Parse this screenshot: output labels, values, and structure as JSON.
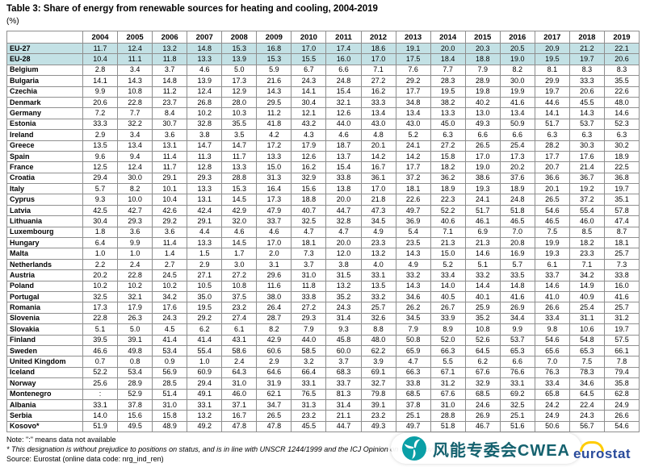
{
  "page": {
    "title": "Table 3: Share of energy from renewable sources for heating and cooling, 2004-2019",
    "unit_label": "(%)"
  },
  "table": {
    "years": [
      "2004",
      "2005",
      "2006",
      "2007",
      "2008",
      "2009",
      "2010",
      "2011",
      "2012",
      "2013",
      "2014",
      "2015",
      "2016",
      "2017",
      "2018",
      "2019"
    ],
    "rows": [
      {
        "name": "EU-27",
        "highlight": true,
        "values": [
          "11.7",
          "12.4",
          "13.2",
          "14.8",
          "15.3",
          "16.8",
          "17.0",
          "17.4",
          "18.6",
          "19.1",
          "20.0",
          "20.3",
          "20.5",
          "20.9",
          "21.2",
          "22.1"
        ]
      },
      {
        "name": "EU-28",
        "highlight": true,
        "values": [
          "10.4",
          "11.1",
          "11.8",
          "13.3",
          "13.9",
          "15.3",
          "15.5",
          "16.0",
          "17.0",
          "17.5",
          "18.4",
          "18.8",
          "19.0",
          "19.5",
          "19.7",
          "20.6"
        ]
      },
      {
        "name": "Belgium",
        "highlight": false,
        "values": [
          "2.8",
          "3.4",
          "3.7",
          "4.6",
          "5.0",
          "5.9",
          "6.7",
          "6.6",
          "7.1",
          "7.6",
          "7.7",
          "7.9",
          "8.2",
          "8.1",
          "8.3",
          "8.3"
        ]
      },
      {
        "name": "Bulgaria",
        "highlight": false,
        "values": [
          "14.1",
          "14.3",
          "14.8",
          "13.9",
          "17.3",
          "21.6",
          "24.3",
          "24.8",
          "27.2",
          "29.2",
          "28.3",
          "28.9",
          "30.0",
          "29.9",
          "33.3",
          "35.5"
        ]
      },
      {
        "name": "Czechia",
        "highlight": false,
        "values": [
          "9.9",
          "10.8",
          "11.2",
          "12.4",
          "12.9",
          "14.3",
          "14.1",
          "15.4",
          "16.2",
          "17.7",
          "19.5",
          "19.8",
          "19.9",
          "19.7",
          "20.6",
          "22.6"
        ]
      },
      {
        "name": "Denmark",
        "highlight": false,
        "values": [
          "20.6",
          "22.8",
          "23.7",
          "26.8",
          "28.0",
          "29.5",
          "30.4",
          "32.1",
          "33.3",
          "34.8",
          "38.2",
          "40.2",
          "41.6",
          "44.6",
          "45.5",
          "48.0"
        ]
      },
      {
        "name": "Germany",
        "highlight": false,
        "values": [
          "7.2",
          "7.7",
          "8.4",
          "10.2",
          "10.3",
          "11.2",
          "12.1",
          "12.6",
          "13.4",
          "13.4",
          "13.3",
          "13.0",
          "13.4",
          "14.1",
          "14.3",
          "14.6"
        ]
      },
      {
        "name": "Estonia",
        "highlight": false,
        "values": [
          "33.3",
          "32.2",
          "30.7",
          "32.8",
          "35.5",
          "41.8",
          "43.2",
          "44.0",
          "43.0",
          "43.0",
          "45.0",
          "49.3",
          "50.9",
          "51.7",
          "53.7",
          "52.3"
        ]
      },
      {
        "name": "Ireland",
        "highlight": false,
        "values": [
          "2.9",
          "3.4",
          "3.6",
          "3.8",
          "3.5",
          "4.2",
          "4.3",
          "4.6",
          "4.8",
          "5.2",
          "6.3",
          "6.6",
          "6.6",
          "6.3",
          "6.3",
          "6.3"
        ]
      },
      {
        "name": "Greece",
        "highlight": false,
        "values": [
          "13.5",
          "13.4",
          "13.1",
          "14.7",
          "14.7",
          "17.2",
          "17.9",
          "18.7",
          "20.1",
          "24.1",
          "27.2",
          "26.5",
          "25.4",
          "28.2",
          "30.3",
          "30.2"
        ]
      },
      {
        "name": "Spain",
        "highlight": false,
        "values": [
          "9.6",
          "9.4",
          "11.4",
          "11.3",
          "11.7",
          "13.3",
          "12.6",
          "13.7",
          "14.2",
          "14.2",
          "15.8",
          "17.0",
          "17.3",
          "17.7",
          "17.6",
          "18.9"
        ]
      },
      {
        "name": "France",
        "highlight": false,
        "values": [
          "12.5",
          "12.4",
          "11.7",
          "12.8",
          "13.3",
          "15.0",
          "16.2",
          "15.4",
          "16.7",
          "17.7",
          "18.2",
          "19.0",
          "20.2",
          "20.7",
          "21.4",
          "22.5"
        ]
      },
      {
        "name": "Croatia",
        "highlight": false,
        "values": [
          "29.4",
          "30.0",
          "29.1",
          "29.3",
          "28.8",
          "31.3",
          "32.9",
          "33.8",
          "36.1",
          "37.2",
          "36.2",
          "38.6",
          "37.6",
          "36.6",
          "36.7",
          "36.8"
        ]
      },
      {
        "name": "Italy",
        "highlight": false,
        "values": [
          "5.7",
          "8.2",
          "10.1",
          "13.3",
          "15.3",
          "16.4",
          "15.6",
          "13.8",
          "17.0",
          "18.1",
          "18.9",
          "19.3",
          "18.9",
          "20.1",
          "19.2",
          "19.7"
        ]
      },
      {
        "name": "Cyprus",
        "highlight": false,
        "values": [
          "9.3",
          "10.0",
          "10.4",
          "13.1",
          "14.5",
          "17.3",
          "18.8",
          "20.0",
          "21.8",
          "22.6",
          "22.3",
          "24.1",
          "24.8",
          "26.5",
          "37.2",
          "35.1"
        ]
      },
      {
        "name": "Latvia",
        "highlight": false,
        "values": [
          "42.5",
          "42.7",
          "42.6",
          "42.4",
          "42.9",
          "47.9",
          "40.7",
          "44.7",
          "47.3",
          "49.7",
          "52.2",
          "51.7",
          "51.8",
          "54.6",
          "55.4",
          "57.8"
        ]
      },
      {
        "name": "Lithuania",
        "highlight": false,
        "values": [
          "30.4",
          "29.3",
          "29.2",
          "29.1",
          "32.0",
          "33.7",
          "32.5",
          "32.8",
          "34.5",
          "36.9",
          "40.6",
          "46.1",
          "46.5",
          "46.5",
          "46.0",
          "47.4"
        ]
      },
      {
        "name": "Luxembourg",
        "highlight": false,
        "values": [
          "1.8",
          "3.6",
          "3.6",
          "4.4",
          "4.6",
          "4.6",
          "4.7",
          "4.7",
          "4.9",
          "5.4",
          "7.1",
          "6.9",
          "7.0",
          "7.5",
          "8.5",
          "8.7"
        ]
      },
      {
        "name": "Hungary",
        "highlight": false,
        "values": [
          "6.4",
          "9.9",
          "11.4",
          "13.3",
          "14.5",
          "17.0",
          "18.1",
          "20.0",
          "23.3",
          "23.5",
          "21.3",
          "21.3",
          "20.8",
          "19.9",
          "18.2",
          "18.1"
        ]
      },
      {
        "name": "Malta",
        "highlight": false,
        "values": [
          "1.0",
          "1.0",
          "1.4",
          "1.5",
          "1.7",
          "2.0",
          "7.3",
          "12.0",
          "13.2",
          "14.3",
          "15.0",
          "14.6",
          "16.9",
          "19.3",
          "23.3",
          "25.7"
        ]
      },
      {
        "name": "Netherlands",
        "highlight": false,
        "values": [
          "2.2",
          "2.4",
          "2.7",
          "2.9",
          "3.0",
          "3.1",
          "3.7",
          "3.8",
          "4.0",
          "4.9",
          "5.2",
          "5.1",
          "5.7",
          "6.1",
          "7.1",
          "7.3"
        ]
      },
      {
        "name": "Austria",
        "highlight": false,
        "values": [
          "20.2",
          "22.8",
          "24.5",
          "27.1",
          "27.2",
          "29.6",
          "31.0",
          "31.5",
          "33.1",
          "33.2",
          "33.4",
          "33.2",
          "33.5",
          "33.7",
          "34.2",
          "33.8"
        ]
      },
      {
        "name": "Poland",
        "highlight": false,
        "values": [
          "10.2",
          "10.2",
          "10.2",
          "10.5",
          "10.8",
          "11.6",
          "11.8",
          "13.2",
          "13.5",
          "14.3",
          "14.0",
          "14.4",
          "14.8",
          "14.6",
          "14.9",
          "16.0"
        ]
      },
      {
        "name": "Portugal",
        "highlight": false,
        "values": [
          "32.5",
          "32.1",
          "34.2",
          "35.0",
          "37.5",
          "38.0",
          "33.8",
          "35.2",
          "33.2",
          "34.6",
          "40.5",
          "40.1",
          "41.6",
          "41.0",
          "40.9",
          "41.6"
        ]
      },
      {
        "name": "Romania",
        "highlight": false,
        "values": [
          "17.3",
          "17.9",
          "17.6",
          "19.5",
          "23.2",
          "26.4",
          "27.2",
          "24.3",
          "25.7",
          "26.2",
          "26.7",
          "25.9",
          "26.9",
          "26.6",
          "25.4",
          "25.7"
        ]
      },
      {
        "name": "Slovenia",
        "highlight": false,
        "values": [
          "22.8",
          "26.3",
          "24.3",
          "29.2",
          "27.4",
          "28.7",
          "29.3",
          "31.4",
          "32.6",
          "34.5",
          "33.9",
          "35.2",
          "34.4",
          "33.4",
          "31.1",
          "31.2"
        ]
      },
      {
        "name": "Slovakia",
        "highlight": false,
        "values": [
          "5.1",
          "5.0",
          "4.5",
          "6.2",
          "6.1",
          "8.2",
          "7.9",
          "9.3",
          "8.8",
          "7.9",
          "8.9",
          "10.8",
          "9.9",
          "9.8",
          "10.6",
          "19.7"
        ]
      },
      {
        "name": "Finland",
        "highlight": false,
        "values": [
          "39.5",
          "39.1",
          "41.4",
          "41.4",
          "43.1",
          "42.9",
          "44.0",
          "45.8",
          "48.0",
          "50.8",
          "52.0",
          "52.6",
          "53.7",
          "54.6",
          "54.8",
          "57.5"
        ]
      },
      {
        "name": "Sweden",
        "highlight": false,
        "values": [
          "46.6",
          "49.8",
          "53.4",
          "55.4",
          "58.6",
          "60.6",
          "58.5",
          "60.0",
          "62.2",
          "65.9",
          "66.3",
          "64.5",
          "65.3",
          "65.6",
          "65.3",
          "66.1"
        ]
      },
      {
        "name": "United Kingdom",
        "highlight": false,
        "values": [
          "0.7",
          "0.8",
          "0.9",
          "1.0",
          "2.4",
          "2.9",
          "3.2",
          "3.7",
          "3.9",
          "4.7",
          "5.5",
          "6.2",
          "6.6",
          "7.0",
          "7.5",
          "7.8"
        ]
      },
      {
        "name": "Iceland",
        "highlight": false,
        "values": [
          "52.2",
          "53.4",
          "56.9",
          "60.9",
          "64.3",
          "64.6",
          "66.4",
          "68.3",
          "69.1",
          "66.3",
          "67.1",
          "67.6",
          "76.6",
          "76.3",
          "78.3",
          "79.4"
        ]
      },
      {
        "name": "Norway",
        "highlight": false,
        "values": [
          "25.6",
          "28.9",
          "28.5",
          "29.4",
          "31.0",
          "31.9",
          "33.1",
          "33.7",
          "32.7",
          "33.8",
          "31.2",
          "32.9",
          "33.1",
          "33.4",
          "34.6",
          "35.8"
        ]
      },
      {
        "name": "Montenegro",
        "highlight": false,
        "values": [
          ":",
          "52.9",
          "51.4",
          "49.1",
          "46.0",
          "62.1",
          "76.5",
          "81.3",
          "79.8",
          "68.5",
          "67.6",
          "68.5",
          "69.2",
          "65.8",
          "64.5",
          "62.8"
        ]
      },
      {
        "name": "Albania",
        "highlight": false,
        "values": [
          "33.1",
          "37.8",
          "31.0",
          "33.1",
          "37.1",
          "34.7",
          "31.3",
          "31.4",
          "39.1",
          "37.8",
          "31.0",
          "24.6",
          "32.5",
          "24.2",
          "22.4",
          "24.9"
        ]
      },
      {
        "name": "Serbia",
        "highlight": false,
        "values": [
          "14.0",
          "15.6",
          "15.8",
          "13.2",
          "16.7",
          "26.5",
          "23.2",
          "21.1",
          "23.2",
          "25.1",
          "28.8",
          "26.9",
          "25.1",
          "24.9",
          "24.3",
          "26.6"
        ]
      },
      {
        "name": "Kosovo*",
        "highlight": false,
        "values": [
          "51.9",
          "49.5",
          "48.9",
          "49.2",
          "47.8",
          "47.8",
          "45.5",
          "44.7",
          "49.3",
          "49.7",
          "51.8",
          "46.7",
          "51.6",
          "50.6",
          "56.7",
          "54.6"
        ]
      }
    ]
  },
  "footer": {
    "note": "Note: \":\" means data not available",
    "footnote": "* This designation is without prejudice to positions on status, and is in line with UNSCR 1244/1999 and the ICJ Opinion on the Kosovo declaration of independence.",
    "source": "Source: Eurostat (online data code: nrg_ind_ren)"
  },
  "watermark": {
    "text": "风能专委会CWEA"
  },
  "logo": {
    "text": "eurostat"
  },
  "colors": {
    "highlight": "#c3e1e5",
    "border": "#8f8f8f",
    "logo_blue": "#2a4b9b",
    "wm_teal": "#0a9fa6",
    "wm_text": "#14616e"
  }
}
